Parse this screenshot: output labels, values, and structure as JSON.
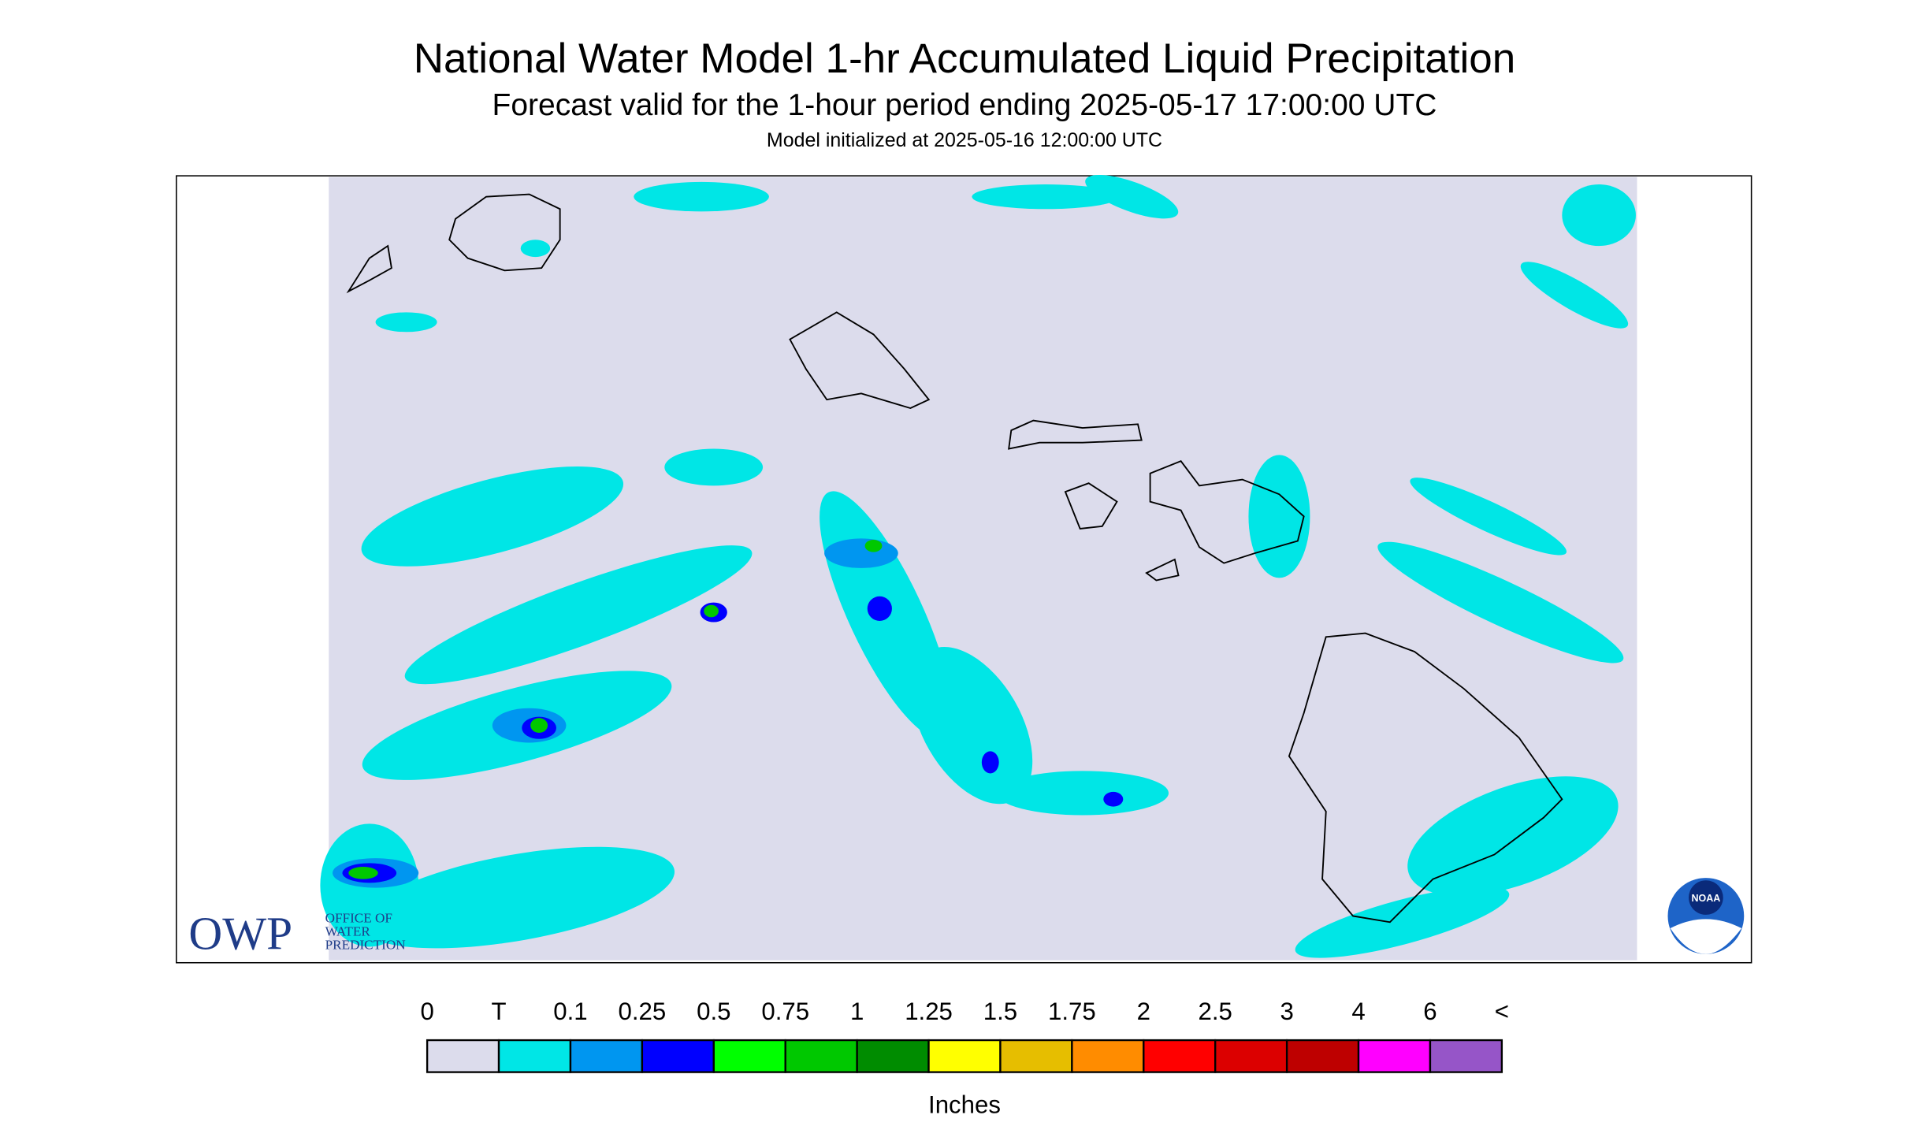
{
  "header": {
    "title": "National Water Model 1-hr Accumulated Liquid Precipitation",
    "subtitle": "Forecast valid for the 1-hour period ending 2025-05-17 17:00:00 UTC",
    "note": "Model initialized at 2025-05-16 12:00:00 UTC"
  },
  "legend": {
    "labels": [
      "0",
      "T",
      "0.1",
      "0.25",
      "0.5",
      "0.75",
      "1",
      "1.25",
      "1.5",
      "1.75",
      "2",
      "2.5",
      "3",
      "4",
      "6",
      "<"
    ],
    "colors": [
      "#dcdcec",
      "#00e6e6",
      "#0096f0",
      "#0000ff",
      "#00ff00",
      "#00c800",
      "#008c00",
      "#ffff00",
      "#e6be00",
      "#ff8c00",
      "#ff0000",
      "#dc0000",
      "#be0000",
      "#ff00ff",
      "#9655c8"
    ],
    "unit": "Inches"
  },
  "logos": {
    "owp": {
      "mark": "OWP",
      "lines": [
        "OFFICE OF",
        "WATER",
        "PREDICTION"
      ]
    },
    "noaa": "NOAA"
  }
}
